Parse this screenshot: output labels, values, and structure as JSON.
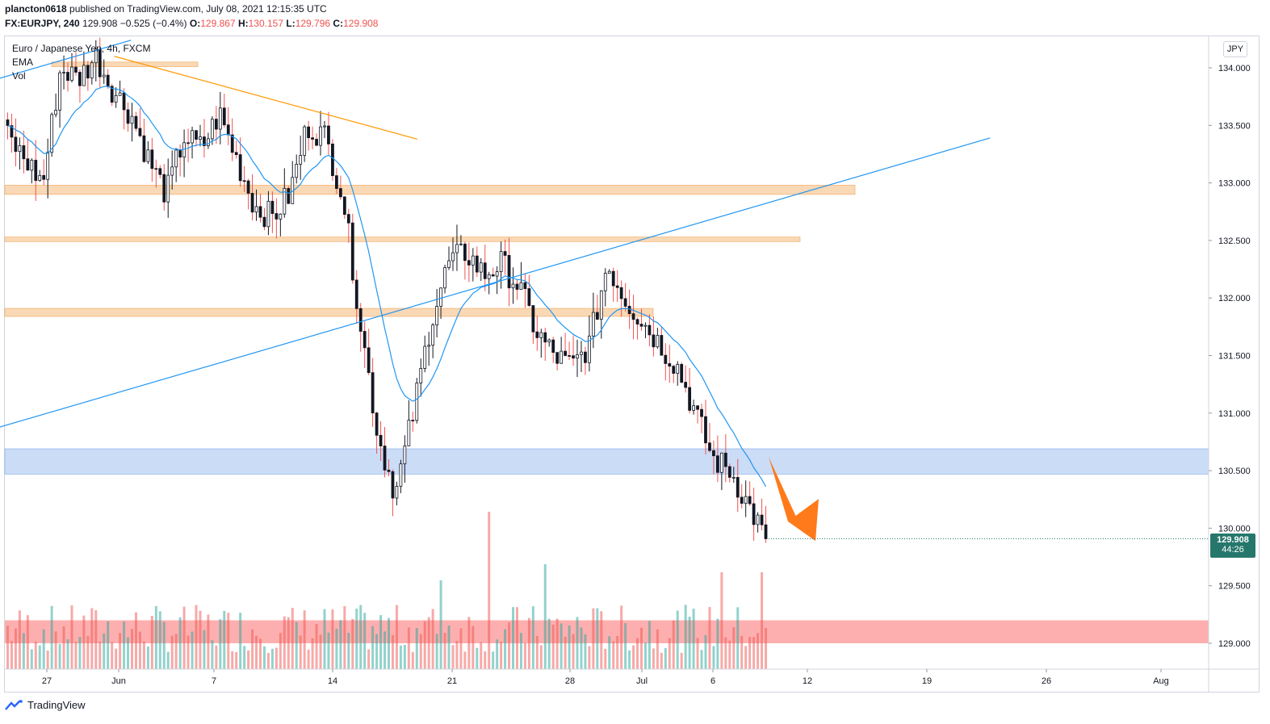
{
  "header": {
    "author": "plancton0618",
    "published": "published on TradingView.com, July 08, 2021 12:15:35 UTC",
    "symbol": "FX:EURJPY, 240",
    "last": "129.908",
    "change": "−0.525 (−0.4%)",
    "o_label": "O:",
    "o_value": "129.867",
    "h_label": "H:",
    "h_value": "130.157",
    "l_label": "L:",
    "l_value": "129.796",
    "c_label": "C:",
    "c_value": "129.908"
  },
  "legend": {
    "title": "Euro / Japanese Yen, 4h, FXCM",
    "ema": "EMA",
    "vol": "Vol"
  },
  "currency_button": "JPY",
  "price_badge": {
    "price": "129.908",
    "countdown": "44:26"
  },
  "footer": {
    "brand": "TradingView"
  },
  "colors": {
    "up": "#26a69a",
    "down": "#ef5350",
    "candle_body": "#131722",
    "ema": "#2196f3",
    "trendline": "#2196f3",
    "resistance_line": "#ff9800",
    "zone_orange": "#f7c796",
    "zone_blue": "#a9c4f2",
    "zone_red": "#fc8d8d",
    "arrow": "#ff7a1a",
    "badge": "#26776b"
  },
  "chart_data": {
    "type": "candlestick",
    "symbol": "EURJPY",
    "timeframe": "4h",
    "y_axis": {
      "ticks": [
        "134.000",
        "133.500",
        "133.000",
        "132.500",
        "132.000",
        "131.500",
        "131.000",
        "130.500",
        "130.000",
        "129.500",
        "129.000"
      ],
      "range": [
        128.8,
        134.3
      ]
    },
    "x_axis": {
      "ticks": [
        "27",
        "Jun",
        "7",
        "14",
        "21",
        "28",
        "Jul",
        "6",
        "12",
        "19",
        "26",
        "Aug"
      ]
    },
    "zones": [
      {
        "color": "orange",
        "from": 132.9,
        "to": 132.98
      },
      {
        "color": "orange",
        "from": 132.49,
        "to": 132.53
      },
      {
        "color": "orange",
        "from": 131.84,
        "to": 131.91
      },
      {
        "color": "orange",
        "from": 134.01,
        "to": 134.05
      },
      {
        "color": "blue",
        "from": 130.47,
        "to": 130.69
      },
      {
        "color": "red",
        "from": 129.0,
        "to": 129.2
      }
    ],
    "trendlines": [
      {
        "color": "blue",
        "from": [
          "May 24",
          130.87
        ],
        "to": [
          "Jul 22",
          133.39
        ]
      },
      {
        "color": "blue",
        "from": [
          "May 24",
          133.9
        ],
        "to": [
          "Jun 1",
          134.24
        ]
      },
      {
        "color": "orange",
        "from": [
          "May 31",
          134.1
        ],
        "to": [
          "Jun 18",
          133.38
        ]
      }
    ],
    "projection_arrow": {
      "from": 130.62,
      "to": 129.96,
      "direction": "down"
    },
    "last_close": 129.908,
    "trend": [
      133.4,
      133.2,
      133.0,
      134.0,
      133.9,
      134.1,
      133.8,
      133.6,
      133.2,
      132.9,
      133.4,
      133.3,
      133.6,
      133.2,
      132.8,
      132.7,
      132.9,
      133.5,
      133.4,
      132.9,
      131.8,
      130.8,
      130.3,
      131.0,
      131.8,
      132.3,
      132.4,
      132.2,
      132.3,
      132.1,
      131.7,
      131.5,
      131.4,
      131.6,
      132.3,
      132.0,
      131.8,
      131.6,
      131.4,
      131.0,
      130.6,
      130.5,
      130.2,
      129.91
    ]
  }
}
